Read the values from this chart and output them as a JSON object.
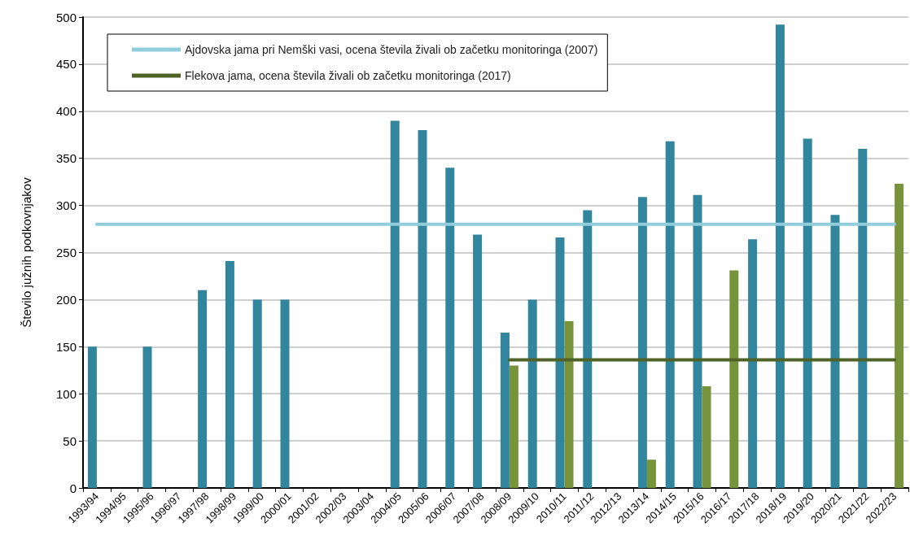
{
  "chart_data": {
    "type": "bar",
    "ylabel": "Število južnih podkovnjakov",
    "categories": [
      "1993/94",
      "1994/95",
      "1995/96",
      "1996/97",
      "1997/98",
      "1998/99",
      "1999/00",
      "2000/01",
      "2001/02",
      "2002/03",
      "2003/04",
      "2004/05",
      "2005/06",
      "2006/07",
      "2007/08",
      "2008/09",
      "2009/10",
      "2010/11",
      "2011/12",
      "2012/13",
      "2013/14",
      "2014/15",
      "2015/16",
      "2016/17",
      "2017/18",
      "2018/19",
      "2019/20",
      "2020/21",
      "2021/22",
      "2022/23"
    ],
    "series": [
      {
        "color": "#31859c",
        "values": [
          150,
          null,
          150,
          null,
          210,
          241,
          200,
          200,
          null,
          null,
          null,
          390,
          380,
          340,
          269,
          165,
          200,
          266,
          295,
          null,
          309,
          368,
          311,
          null,
          264,
          492,
          371,
          290,
          360,
          null
        ]
      },
      {
        "color": "#77933c",
        "values": [
          null,
          null,
          null,
          null,
          null,
          null,
          null,
          null,
          null,
          null,
          null,
          null,
          null,
          null,
          null,
          130,
          null,
          177,
          null,
          null,
          30,
          null,
          108,
          231,
          null,
          null,
          null,
          null,
          null,
          323
        ]
      },
      {
        "type": "line",
        "name": "Ajdovska jama pri Nemški vasi, ocena števila živali ob začetku monitoringa (2007)",
        "color": "#92cddc",
        "values": [
          280,
          280,
          280,
          280,
          280,
          280,
          280,
          280,
          280,
          280,
          280,
          280,
          280,
          280,
          280,
          280,
          280,
          280,
          280,
          280,
          280,
          280,
          280,
          280,
          280,
          280,
          280,
          280,
          280,
          280
        ]
      },
      {
        "type": "line",
        "name": "Flekova jama, ocena števila živali ob začetku monitoringa (2017)",
        "color": "#4f6228",
        "values": [
          null,
          null,
          null,
          null,
          null,
          null,
          null,
          null,
          null,
          null,
          null,
          null,
          null,
          null,
          null,
          136,
          136,
          136,
          136,
          136,
          136,
          136,
          136,
          136,
          136,
          136,
          136,
          136,
          136,
          136
        ]
      }
    ],
    "ylim": [
      0,
      500
    ],
    "yticks": [
      0,
      50,
      100,
      150,
      200,
      250,
      300,
      350,
      400,
      450,
      500
    ],
    "grid": "y",
    "legend": "top left",
    "marker": "none"
  }
}
